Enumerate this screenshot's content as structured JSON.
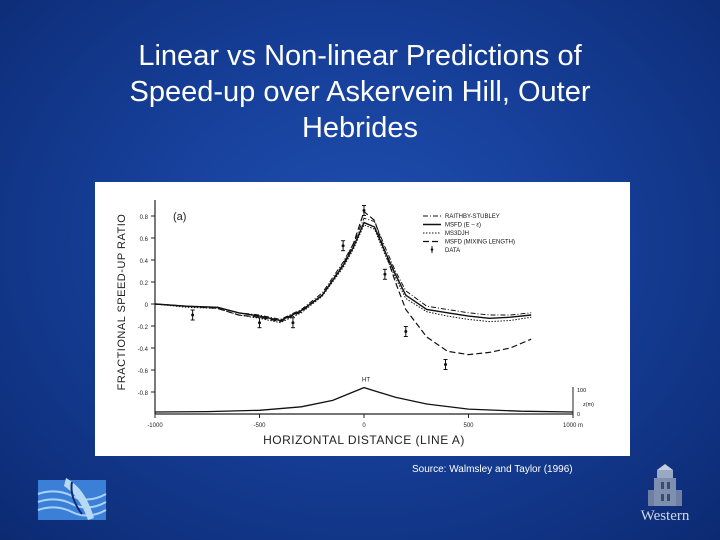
{
  "slide": {
    "title_line1": "Linear vs Non-linear Predictions of",
    "title_line2": "Speed-up over Askervein Hill, Outer",
    "title_line3": "Hebrides",
    "source": "Source: Walmsley and Taylor  (1996)",
    "logo_right_text": "Western",
    "colors": {
      "background": "#163f99",
      "title": "#ffffff"
    }
  },
  "chart_data": {
    "type": "line",
    "panel_label": "(a)",
    "xlabel": "HORIZONTAL  DISTANCE  (LINE  A)",
    "ylabel": "FRACTIONAL  SPEED-UP  RATIO",
    "xlim": [
      -1000,
      1000
    ],
    "ylim": [
      -0.6,
      0.9
    ],
    "x_ticks": [
      "-1000",
      "-500",
      "0",
      "500",
      "1000 m"
    ],
    "y_ticks": [
      "0.8",
      "0.6",
      "0.4",
      "0.2",
      "0",
      "-0.2",
      "-0.4",
      "-0.6",
      "-0.8"
    ],
    "y_tick_values": [
      0.8,
      0.6,
      0.4,
      0.2,
      0.0,
      -0.2,
      -0.4,
      -0.6,
      -0.8
    ],
    "legend": [
      "RAITHBY-STUBLEY",
      "MSFD (E – ε)",
      "MS3DJH",
      "MSFD (MIXING LENGTH)",
      "DATA"
    ],
    "legend_position": "top-right",
    "series": [
      {
        "name": "RAITHBY-STUBLEY",
        "x": [
          -1000,
          -850,
          -700,
          -600,
          -500,
          -400,
          -300,
          -200,
          -100,
          -50,
          0,
          50,
          100,
          150,
          200,
          300,
          400,
          500,
          600,
          700,
          800
        ],
        "y": [
          0.0,
          -0.02,
          -0.03,
          -0.08,
          -0.1,
          -0.14,
          -0.05,
          0.1,
          0.38,
          0.55,
          0.78,
          0.75,
          0.52,
          0.3,
          0.12,
          -0.02,
          -0.05,
          -0.08,
          -0.1,
          -0.1,
          -0.08
        ]
      },
      {
        "name": "MSFD (E – ε)",
        "x": [
          -1000,
          -850,
          -700,
          -600,
          -500,
          -400,
          -300,
          -200,
          -100,
          -50,
          0,
          50,
          100,
          150,
          200,
          300,
          400,
          500,
          600,
          700,
          800
        ],
        "y": [
          0.0,
          -0.02,
          -0.03,
          -0.08,
          -0.11,
          -0.15,
          -0.06,
          0.08,
          0.35,
          0.52,
          0.74,
          0.7,
          0.48,
          0.27,
          0.08,
          -0.05,
          -0.08,
          -0.11,
          -0.13,
          -0.12,
          -0.1
        ]
      },
      {
        "name": "MS3DJH",
        "x": [
          -1000,
          -850,
          -700,
          -600,
          -500,
          -400,
          -300,
          -200,
          -100,
          -50,
          0,
          50,
          100,
          150,
          200,
          300,
          400,
          500,
          600,
          700,
          800
        ],
        "y": [
          0.0,
          -0.03,
          -0.04,
          -0.1,
          -0.13,
          -0.17,
          -0.08,
          0.07,
          0.33,
          0.5,
          0.72,
          0.68,
          0.45,
          0.24,
          0.05,
          -0.07,
          -0.11,
          -0.14,
          -0.16,
          -0.15,
          -0.12
        ]
      },
      {
        "name": "MSFD (MIXING LENGTH)",
        "x": [
          -1000,
          -850,
          -700,
          -600,
          -500,
          -400,
          -300,
          -200,
          -100,
          -50,
          0,
          50,
          100,
          150,
          200,
          300,
          400,
          500,
          600,
          700,
          800
        ],
        "y": [
          0.0,
          -0.02,
          -0.04,
          -0.1,
          -0.12,
          -0.16,
          -0.07,
          0.08,
          0.36,
          0.55,
          0.84,
          0.76,
          0.48,
          0.2,
          -0.05,
          -0.3,
          -0.43,
          -0.46,
          -0.44,
          -0.4,
          -0.32
        ]
      }
    ],
    "data_points": [
      {
        "x": -820,
        "y": -0.1
      },
      {
        "x": -500,
        "y": -0.17
      },
      {
        "x": -340,
        "y": -0.17
      },
      {
        "x": -100,
        "y": 0.53
      },
      {
        "x": 0,
        "y": 0.85
      },
      {
        "x": 100,
        "y": 0.27
      },
      {
        "x": 200,
        "y": -0.25
      },
      {
        "x": 390,
        "y": -0.55
      }
    ],
    "terrain_profile": {
      "label": "HT",
      "axis_label": "z(m)",
      "axis_ticks": [
        "100",
        "0"
      ],
      "x": [
        -1000,
        -750,
        -500,
        -300,
        -150,
        0,
        150,
        300,
        500,
        750,
        1000
      ],
      "height_m": [
        0,
        2,
        8,
        25,
        55,
        116,
        70,
        38,
        14,
        4,
        0
      ]
    }
  }
}
